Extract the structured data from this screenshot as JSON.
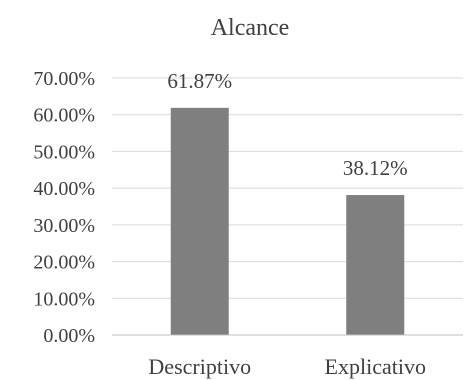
{
  "chart_data": {
    "type": "bar",
    "title": "Alcance",
    "categories": [
      "Descriptivo",
      "Explicativo"
    ],
    "values": [
      61.87,
      38.12
    ],
    "data_labels": [
      "61.87%",
      "38.12%"
    ],
    "y_ticks": [
      "0.00%",
      "10.00%",
      "20.00%",
      "30.00%",
      "40.00%",
      "50.00%",
      "60.00%",
      "70.00%"
    ],
    "ylim": [
      0,
      70
    ],
    "xlabel": "",
    "ylabel": "",
    "grid": true,
    "legend": "none",
    "bar_color": "#7f7f7f"
  }
}
